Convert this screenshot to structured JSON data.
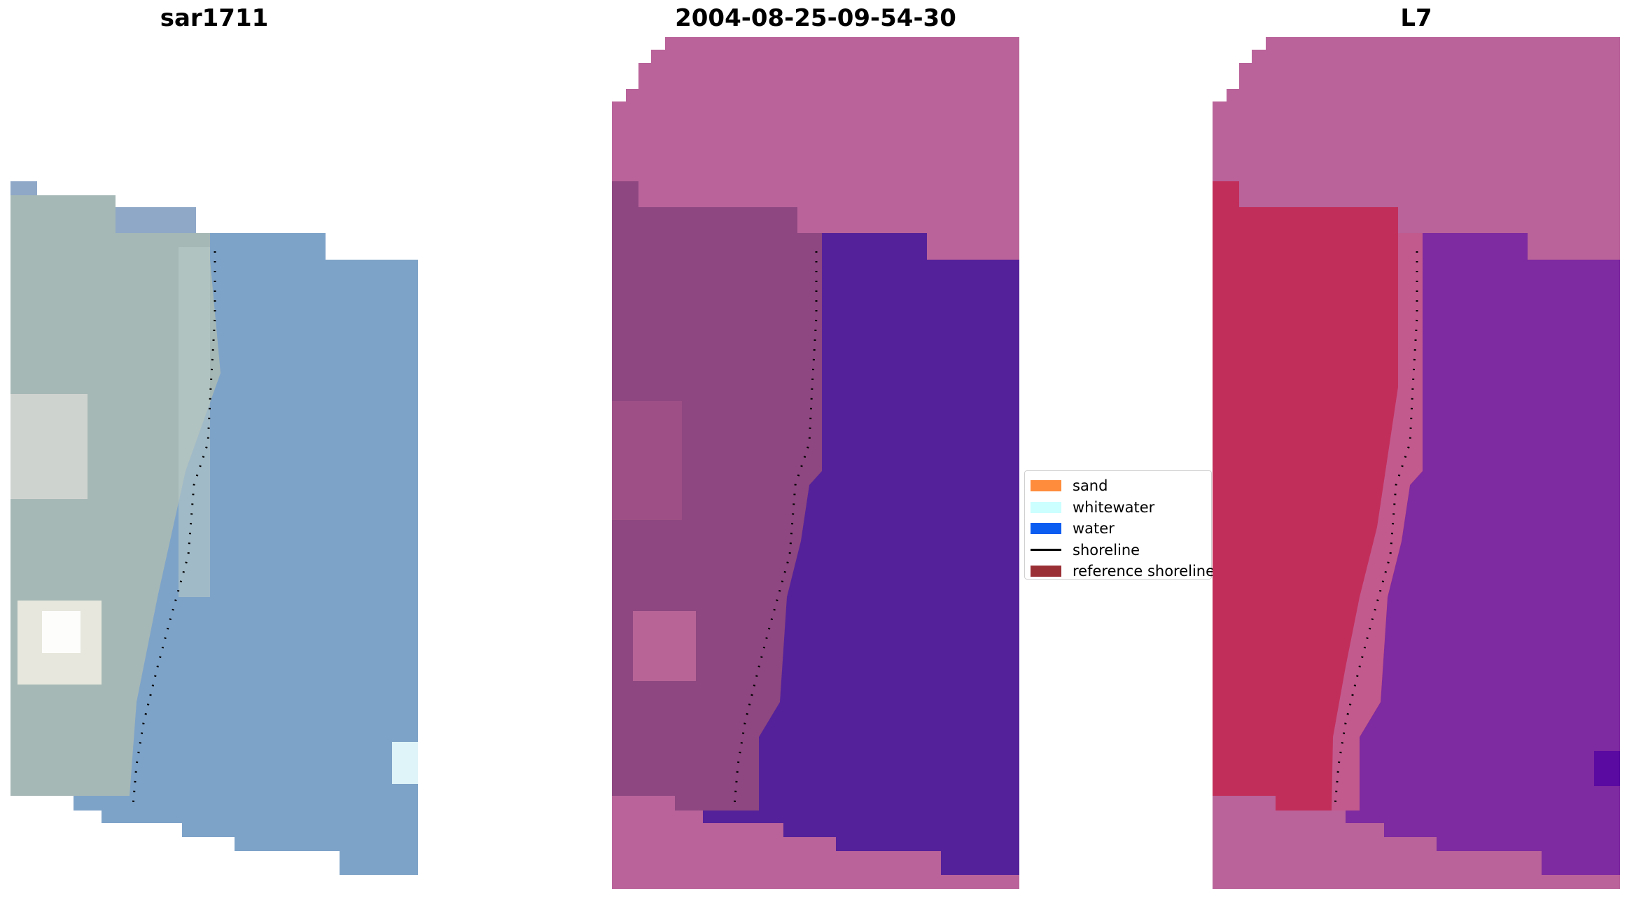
{
  "panels": [
    {
      "title": "sar1711"
    },
    {
      "title": "2004-08-25-09-54-30"
    },
    {
      "title": "L7"
    }
  ],
  "legend": {
    "items": [
      {
        "label": "sand",
        "color": "#ff8c3c",
        "kind": "swatch"
      },
      {
        "label": "whitewater",
        "color": "#ccffff",
        "kind": "swatch"
      },
      {
        "label": "water",
        "color": "#0b5cf0",
        "kind": "swatch"
      },
      {
        "label": "shoreline",
        "color": "#000000",
        "kind": "line"
      },
      {
        "label": "reference shoreline",
        "color": "#9a2f35",
        "kind": "swatch"
      }
    ]
  },
  "colors": {
    "rgb_land": "#a3b8b4",
    "rgb_sea": "#7ea3c8",
    "cloud_mask": "#b9639a",
    "class_sand_overlay": "#8e4780",
    "class_water": "#55219a",
    "index_land": "#c22e5a",
    "index_sea": "#7e2aa0",
    "shoreline": "#000000"
  }
}
